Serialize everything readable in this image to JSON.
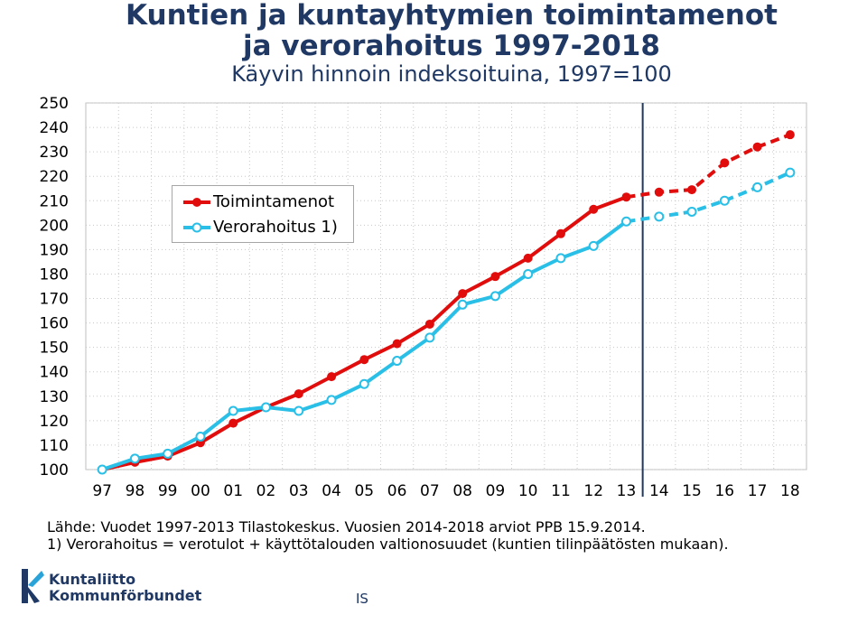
{
  "page": {
    "title_line1": "Kuntien ja kuntayhtymien toimintamenot",
    "title_line2": "ja verorahoitus 1997-2018",
    "subtitle": "Käyvin hinnoin indeksoituina, 1997=100"
  },
  "chart_data": {
    "type": "line",
    "categories": [
      "97",
      "98",
      "99",
      "00",
      "01",
      "02",
      "03",
      "04",
      "05",
      "06",
      "07",
      "08",
      "09",
      "10",
      "11",
      "12",
      "13",
      "14",
      "15",
      "16",
      "17",
      "18"
    ],
    "ylim": [
      100,
      250
    ],
    "yticks": [
      100,
      110,
      120,
      130,
      140,
      150,
      160,
      170,
      180,
      190,
      200,
      210,
      220,
      230,
      240,
      250
    ],
    "grid": true,
    "legend_position": "top-left",
    "forecast_start_index": 16,
    "series": [
      {
        "name": "Toimintamenot",
        "color": "#e10c0c",
        "values": [
          100,
          103,
          105.5,
          111,
          119,
          125.5,
          131,
          138,
          145,
          151.5,
          159.5,
          172,
          179,
          186.5,
          196.5,
          206.5,
          211.5,
          213.5,
          214.5,
          225.5,
          232,
          237
        ]
      },
      {
        "name": "Verorahoitus 1)",
        "color": "#29bfe6",
        "values": [
          100,
          104.5,
          106.5,
          113.5,
          124,
          125.5,
          124,
          128.5,
          135,
          144.5,
          154,
          167.5,
          171,
          180,
          186.5,
          191.5,
          201.5,
          203.5,
          205.5,
          210,
          215.5,
          221.5
        ]
      }
    ]
  },
  "notes": {
    "source": "Lähde: Vuodet 1997-2013 Tilastokeskus. Vuosien 2014-2018 arviot PPB 15.9.2014.",
    "footnote": "1) Verorahoitus = verotulot + käyttötalouden valtionosuudet (kuntien tilinpäätösten mukaan)."
  },
  "logo": {
    "line1": "Kuntaliitto",
    "line2": "Kommunförbundet",
    "mark_color": "#1f3864",
    "accent_color": "#29a3d8"
  },
  "footer": {
    "initials": "IS"
  }
}
